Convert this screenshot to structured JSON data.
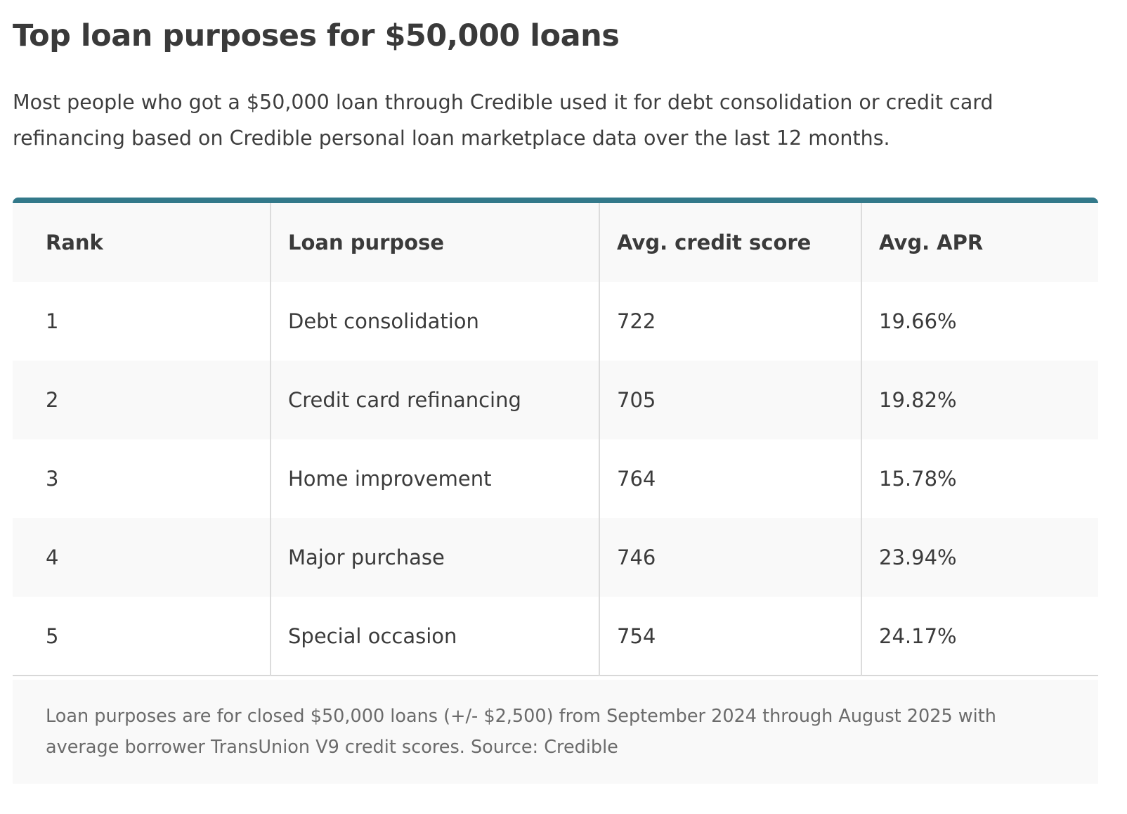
{
  "title": "Top loan purposes for $50,000 loans",
  "intro": "Most people who got a $50,000 loan through Credible used it for debt consolidation or credit card refinancing based on Credible personal loan marketplace data over the last 12 months.",
  "table": {
    "accent_color": "#33798a",
    "headers": [
      "Rank",
      "Loan purpose",
      "Avg. credit score",
      "Avg. APR"
    ],
    "rows": [
      [
        "1",
        "Debt consolidation",
        "722",
        "19.66%"
      ],
      [
        "2",
        "Credit card refinancing",
        "705",
        "19.82%"
      ],
      [
        "3",
        "Home improvement",
        "764",
        "15.78%"
      ],
      [
        "4",
        "Major purchase",
        "746",
        "23.94%"
      ],
      [
        "5",
        "Special occasion",
        "754",
        "24.17%"
      ]
    ]
  },
  "footnote": "Loan purposes are for closed $50,000 loans (+/- $2,500) from September 2024 through August 2025 with average borrower TransUnion V9 credit scores. Source: Credible"
}
